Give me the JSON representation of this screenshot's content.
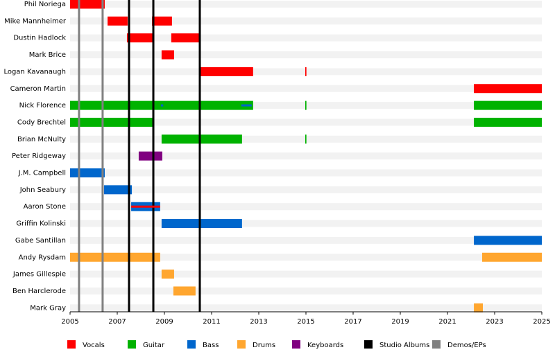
{
  "chart_data": {
    "type": "timeline",
    "xlim": [
      2005,
      2025
    ],
    "xticks": [
      2005,
      2007,
      2009,
      2011,
      2013,
      2015,
      2017,
      2019,
      2021,
      2023,
      2025
    ],
    "series": [
      {
        "name": "Vocals",
        "color": "#ff0000"
      },
      {
        "name": "Guitar",
        "color": "#00b200"
      },
      {
        "name": "Bass",
        "color": "#0066cc"
      },
      {
        "name": "Drums",
        "color": "#ffa62f"
      },
      {
        "name": "Keyboards",
        "color": "#800080"
      }
    ],
    "events": [
      {
        "name": "Studio Albums",
        "color": "#000000",
        "x": [
          2007.5,
          2008.53,
          2010.5
        ]
      },
      {
        "name": "Demos/EPs",
        "color": "#808080",
        "x": [
          2005.38,
          2006.38
        ]
      }
    ],
    "rows": [
      {
        "name": "Phil Noriega",
        "periods": [
          {
            "role": "Vocals",
            "start": 2005,
            "end": 2006.47
          }
        ]
      },
      {
        "name": "Mike Mannheimer",
        "periods": [
          {
            "role": "Vocals",
            "start": 2006.59,
            "end": 2007.44
          },
          {
            "role": "Vocals",
            "start": 2008.47,
            "end": 2009.32
          }
        ]
      },
      {
        "name": "Dustin Hadlock",
        "periods": [
          {
            "role": "Vocals",
            "start": 2007.41,
            "end": 2008.53
          },
          {
            "role": "Vocals",
            "start": 2009.29,
            "end": 2010.47
          }
        ]
      },
      {
        "name": "Mark Brice",
        "periods": [
          {
            "role": "Vocals",
            "start": 2008.88,
            "end": 2009.41
          }
        ]
      },
      {
        "name": "Logan Kavanaugh",
        "periods": [
          {
            "role": "Vocals",
            "start": 2010.47,
            "end": 2012.76
          },
          {
            "role": "Vocals",
            "start": 2014.97,
            "end": 2015.02
          }
        ]
      },
      {
        "name": "Cameron Martin",
        "periods": [
          {
            "role": "Vocals",
            "start": 2022.12,
            "end": 2025
          }
        ]
      },
      {
        "name": "Nick Florence",
        "periods": [
          {
            "role": "Guitar",
            "start": 2005,
            "end": 2012.76
          },
          {
            "role": "Guitar",
            "start": 2014.97,
            "end": 2015.02
          },
          {
            "role": "Guitar",
            "start": 2022.12,
            "end": 2025
          },
          {
            "role": "Bass",
            "start": 2008.85,
            "end": 2008.95,
            "thin": true
          },
          {
            "role": "Bass",
            "start": 2012.26,
            "end": 2012.7,
            "thin": true
          }
        ]
      },
      {
        "name": "Cody Brechtel",
        "periods": [
          {
            "role": "Guitar",
            "start": 2005,
            "end": 2008.56
          },
          {
            "role": "Guitar",
            "start": 2022.12,
            "end": 2025
          }
        ]
      },
      {
        "name": "Brian McNulty",
        "periods": [
          {
            "role": "Guitar",
            "start": 2008.88,
            "end": 2012.29
          },
          {
            "role": "Guitar",
            "start": 2014.97,
            "end": 2015.02
          }
        ]
      },
      {
        "name": "Peter Ridgeway",
        "periods": [
          {
            "role": "Keyboards",
            "start": 2007.91,
            "end": 2008.91
          }
        ]
      },
      {
        "name": "J.M. Campbell",
        "periods": [
          {
            "role": "Bass",
            "start": 2005,
            "end": 2006.47
          }
        ]
      },
      {
        "name": "John Seabury",
        "periods": [
          {
            "role": "Bass",
            "start": 2006.44,
            "end": 2007.62
          }
        ]
      },
      {
        "name": "Aaron Stone",
        "periods": [
          {
            "role": "Bass",
            "start": 2007.59,
            "end": 2008.82
          },
          {
            "role": "Vocals",
            "start": 2007.59,
            "end": 2008.82,
            "thin": true
          }
        ]
      },
      {
        "name": "Griffin Kolinski",
        "periods": [
          {
            "role": "Bass",
            "start": 2008.88,
            "end": 2012.29
          }
        ]
      },
      {
        "name": "Gabe Santillan",
        "periods": [
          {
            "role": "Bass",
            "start": 2022.12,
            "end": 2025
          }
        ]
      },
      {
        "name": "Andy Rysdam",
        "periods": [
          {
            "role": "Drums",
            "start": 2005,
            "end": 2008.82
          },
          {
            "role": "Drums",
            "start": 2022.47,
            "end": 2025
          }
        ]
      },
      {
        "name": "James Gillespie",
        "periods": [
          {
            "role": "Drums",
            "start": 2008.88,
            "end": 2009.41
          }
        ]
      },
      {
        "name": "Ben Harclerode",
        "periods": [
          {
            "role": "Drums",
            "start": 2009.38,
            "end": 2010.32
          }
        ]
      },
      {
        "name": "Mark Gray",
        "periods": [
          {
            "role": "Drums",
            "start": 2022.12,
            "end": 2022.5
          }
        ]
      }
    ]
  }
}
